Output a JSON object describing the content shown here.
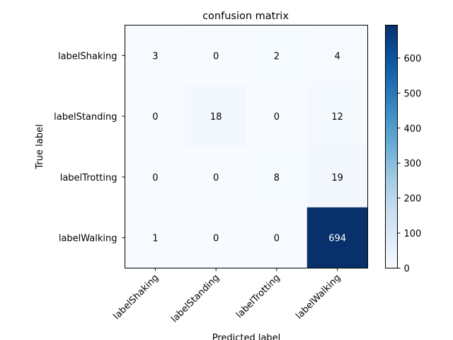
{
  "chart_data": {
    "type": "heatmap",
    "title": "confusion matrix",
    "xlabel": "Predicted label",
    "ylabel": "True label",
    "x_categories": [
      "labelShaking",
      "labelStanding",
      "labelTrotting",
      "labelWalking"
    ],
    "y_categories": [
      "labelShaking",
      "labelStanding",
      "labelTrotting",
      "labelWalking"
    ],
    "matrix": [
      [
        3,
        0,
        2,
        4
      ],
      [
        0,
        18,
        0,
        12
      ],
      [
        0,
        0,
        8,
        19
      ],
      [
        1,
        0,
        0,
        694
      ]
    ],
    "colorbar": {
      "min": 0,
      "max": 694,
      "ticks": [
        0,
        100,
        200,
        300,
        400,
        500,
        600
      ]
    },
    "colormap": "Blues",
    "colors": {
      "low": "#f7fbff",
      "high": "#08306b",
      "text_light": "#ffffff",
      "text_dark": "#000000"
    },
    "grid": false
  }
}
